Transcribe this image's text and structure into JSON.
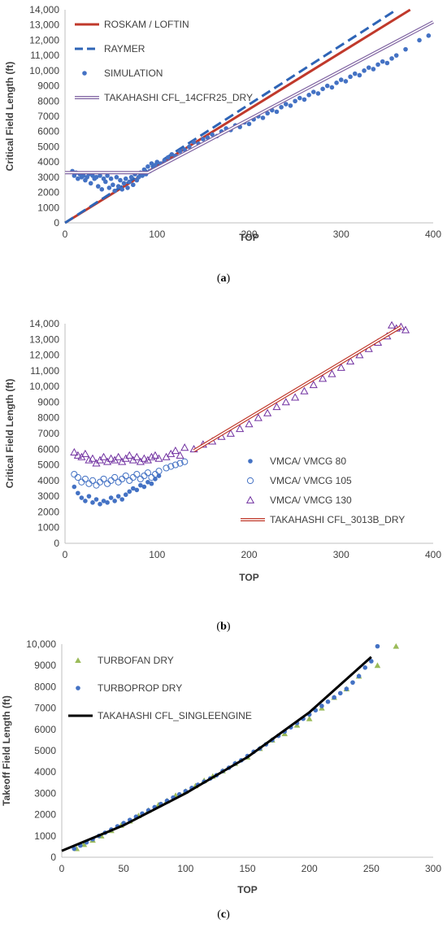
{
  "chart_data": [
    {
      "type": "scatter",
      "caption_letter": "a",
      "xlabel": "TOP",
      "ylabel": "Critical Field Length (ft)",
      "xlim": [
        0,
        400
      ],
      "ylim": [
        0,
        14000
      ],
      "x_ticks": [
        "0",
        "100",
        "200",
        "300",
        "400"
      ],
      "y_ticks": [
        "0",
        "1000",
        "2000",
        "3000",
        "4000",
        "5000",
        "6000",
        "7000",
        "8000",
        "9000",
        "10,000",
        "11,000",
        "12,000",
        "13,000",
        "14,000"
      ],
      "grid": false,
      "legend_position": "top-left",
      "series": [
        {
          "name": "ROSKAM / LOFTIN",
          "kind": "line",
          "style": "solid",
          "color": "#c0392b",
          "x": [
            0,
            375
          ],
          "y": [
            0,
            14000
          ]
        },
        {
          "name": "RAYMER",
          "kind": "line",
          "style": "dashed",
          "color": "#2e64b6",
          "x": [
            0,
            360
          ],
          "y": [
            0,
            14000
          ]
        },
        {
          "name": "SIMULATION",
          "kind": "scatter",
          "color": "#4472c4",
          "x": [
            8,
            10,
            12,
            14,
            16,
            18,
            20,
            22,
            24,
            26,
            28,
            30,
            32,
            34,
            36,
            38,
            40,
            42,
            44,
            46,
            48,
            50,
            52,
            54,
            56,
            58,
            60,
            62,
            64,
            66,
            68,
            70,
            72,
            74,
            76,
            78,
            80,
            82,
            84,
            86,
            88,
            90,
            92,
            94,
            96,
            98,
            100,
            104,
            108,
            112,
            116,
            120,
            125,
            130,
            135,
            140,
            145,
            150,
            155,
            160,
            165,
            170,
            175,
            180,
            185,
            190,
            195,
            200,
            205,
            210,
            215,
            220,
            225,
            230,
            235,
            240,
            245,
            250,
            255,
            260,
            265,
            270,
            275,
            280,
            285,
            290,
            295,
            300,
            305,
            310,
            315,
            320,
            325,
            330,
            335,
            340,
            345,
            350,
            355,
            360,
            370,
            385,
            395
          ],
          "y": [
            3400,
            3100,
            3300,
            2900,
            3200,
            3000,
            3100,
            2800,
            3000,
            3200,
            2600,
            3100,
            2900,
            3000,
            2400,
            3100,
            2200,
            2900,
            2700,
            3100,
            2300,
            2900,
            2500,
            2100,
            3000,
            2400,
            2800,
            2200,
            2600,
            2900,
            2300,
            2700,
            3000,
            2500,
            3200,
            2800,
            3000,
            3300,
            3100,
            3500,
            3200,
            3700,
            3400,
            3900,
            3600,
            3800,
            4000,
            3900,
            4100,
            4300,
            4500,
            4400,
            4700,
            4800,
            5000,
            5300,
            5200,
            5500,
            5600,
            5800,
            5700,
            6000,
            6200,
            6100,
            6400,
            6300,
            6600,
            6500,
            6800,
            7000,
            6900,
            7200,
            7400,
            7300,
            7600,
            7800,
            7700,
            8000,
            8200,
            8100,
            8400,
            8600,
            8500,
            8800,
            9000,
            8900,
            9200,
            9400,
            9300,
            9600,
            9800,
            9700,
            10000,
            10200,
            10100,
            10400,
            10600,
            10500,
            10800,
            11000,
            11400,
            12000,
            12300
          ]
        },
        {
          "name": "TAKAHASHI CFL_14CFR25_DRY",
          "kind": "double-line",
          "color": "#8064a2",
          "x": [
            0,
            90,
            400
          ],
          "y": [
            3300,
            3300,
            13200
          ]
        }
      ]
    },
    {
      "type": "scatter",
      "caption_letter": "b",
      "xlabel": "TOP",
      "ylabel": "Critical Field Length (ft)",
      "xlim": [
        0,
        400
      ],
      "ylim": [
        0,
        14000
      ],
      "x_ticks": [
        "0",
        "100",
        "200",
        "300",
        "400"
      ],
      "y_ticks": [
        "0",
        "1000",
        "2000",
        "3000",
        "4000",
        "5000",
        "6000",
        "7000",
        "8000",
        "9000",
        "10,000",
        "11,000",
        "12,000",
        "13,000",
        "14,000"
      ],
      "grid": false,
      "legend_position": "bottom-right",
      "series": [
        {
          "name": "VMCA/ VMCG 80",
          "kind": "scatter",
          "marker": "filled-circle",
          "color": "#4472c4",
          "x": [
            10,
            14,
            18,
            22,
            26,
            30,
            34,
            38,
            42,
            46,
            50,
            54,
            58,
            62,
            66,
            70,
            74,
            78,
            82,
            86,
            90,
            94,
            98,
            102
          ],
          "y": [
            3600,
            3200,
            2900,
            2700,
            3000,
            2600,
            2800,
            2500,
            2700,
            2600,
            2900,
            2700,
            3000,
            2800,
            3100,
            3300,
            3500,
            3400,
            3700,
            3600,
            3900,
            3800,
            4100,
            4300
          ]
        },
        {
          "name": "VMCA/ VMCG 105",
          "kind": "scatter",
          "marker": "hollow-circle",
          "color": "#4472c4",
          "x": [
            10,
            14,
            18,
            22,
            26,
            30,
            34,
            38,
            42,
            46,
            50,
            54,
            58,
            62,
            66,
            70,
            74,
            78,
            82,
            86,
            90,
            94,
            98,
            102,
            110,
            115,
            120,
            125,
            130
          ],
          "y": [
            4400,
            4200,
            3900,
            4100,
            3800,
            4000,
            3700,
            3900,
            4100,
            3800,
            4000,
            4200,
            3900,
            4100,
            4300,
            4000,
            4200,
            4400,
            4100,
            4300,
            4500,
            4200,
            4400,
            4600,
            4800,
            4900,
            5000,
            5100,
            5200
          ]
        },
        {
          "name": "VMCA/ VMCG 130",
          "kind": "scatter",
          "marker": "hollow-triangle",
          "color": "#7030a0",
          "x": [
            10,
            14,
            18,
            22,
            26,
            30,
            34,
            38,
            42,
            46,
            50,
            54,
            58,
            62,
            66,
            70,
            74,
            78,
            82,
            86,
            90,
            94,
            98,
            102,
            110,
            115,
            120,
            125,
            130,
            140,
            150,
            160,
            170,
            180,
            190,
            200,
            210,
            220,
            230,
            240,
            250,
            260,
            270,
            280,
            290,
            300,
            310,
            320,
            330,
            340,
            350,
            355,
            360,
            365,
            370
          ],
          "y": [
            5800,
            5600,
            5500,
            5700,
            5300,
            5400,
            5100,
            5300,
            5500,
            5200,
            5400,
            5300,
            5500,
            5200,
            5400,
            5600,
            5300,
            5500,
            5200,
            5400,
            5300,
            5500,
            5600,
            5400,
            5500,
            5700,
            5900,
            5600,
            6100,
            6000,
            6300,
            6500,
            6800,
            7000,
            7300,
            7600,
            8000,
            8300,
            8700,
            9000,
            9300,
            9700,
            10100,
            10500,
            10800,
            11200,
            11600,
            12000,
            12400,
            12800,
            13200,
            13900,
            13700,
            13800,
            13600
          ]
        },
        {
          "name": "TAKAHASHI CFL_3013B_DRY",
          "kind": "double-line",
          "color": "#c0392b",
          "x": [
            140,
            365
          ],
          "y": [
            5900,
            13800
          ]
        }
      ]
    },
    {
      "type": "scatter",
      "caption_letter": "c",
      "xlabel": "TOP",
      "ylabel": "Takeoff Field Length (ft)",
      "xlim": [
        0,
        300
      ],
      "ylim": [
        0,
        10000
      ],
      "x_ticks": [
        "0",
        "50",
        "100",
        "150",
        "200",
        "250",
        "300"
      ],
      "y_ticks": [
        "0",
        "1000",
        "2000",
        "3000",
        "4000",
        "5000",
        "6000",
        "7000",
        "8000",
        "9000",
        "10,000"
      ],
      "grid": false,
      "legend_position": "top-left",
      "series": [
        {
          "name": "TURBOFAN DRY",
          "kind": "scatter",
          "marker": "filled-triangle",
          "color": "#9bbb59",
          "x": [
            12,
            18,
            25,
            32,
            40,
            48,
            55,
            62,
            70,
            78,
            85,
            92,
            100,
            108,
            115,
            122,
            130,
            140,
            150,
            160,
            170,
            180,
            190,
            200,
            210,
            220,
            230,
            240,
            255,
            270
          ],
          "y": [
            400,
            600,
            800,
            1000,
            1250,
            1500,
            1700,
            1950,
            2200,
            2450,
            2650,
            2900,
            3100,
            3350,
            3600,
            3800,
            4050,
            4400,
            4700,
            5100,
            5500,
            5800,
            6200,
            6500,
            7000,
            7500,
            7900,
            8500,
            9000,
            9900
          ]
        },
        {
          "name": "TURBOPROP DRY",
          "kind": "scatter",
          "marker": "filled-circle",
          "color": "#4472c4",
          "x": [
            10,
            15,
            20,
            25,
            30,
            35,
            40,
            45,
            50,
            55,
            60,
            65,
            70,
            75,
            80,
            85,
            90,
            95,
            100,
            105,
            110,
            115,
            120,
            125,
            130,
            135,
            140,
            145,
            150,
            155,
            160,
            165,
            170,
            175,
            180,
            185,
            190,
            195,
            200,
            205,
            210,
            215,
            220,
            225,
            230,
            235,
            240,
            245,
            250,
            255
          ],
          "y": [
            400,
            550,
            700,
            850,
            1000,
            1150,
            1300,
            1450,
            1600,
            1750,
            1900,
            2050,
            2200,
            2350,
            2500,
            2650,
            2800,
            2950,
            3100,
            3250,
            3400,
            3550,
            3700,
            3850,
            4050,
            4200,
            4400,
            4550,
            4750,
            4950,
            5100,
            5300,
            5500,
            5700,
            5900,
            6100,
            6300,
            6500,
            6700,
            6900,
            7100,
            7300,
            7500,
            7700,
            7900,
            8200,
            8500,
            8900,
            9200,
            9900
          ]
        },
        {
          "name": "TAKAHASHI CFL_SINGLEENGINE",
          "kind": "line",
          "style": "solid",
          "color": "#000000",
          "x": [
            0,
            50,
            100,
            150,
            200,
            250
          ],
          "y": [
            300,
            1500,
            3000,
            4700,
            6800,
            9400
          ]
        }
      ]
    }
  ]
}
